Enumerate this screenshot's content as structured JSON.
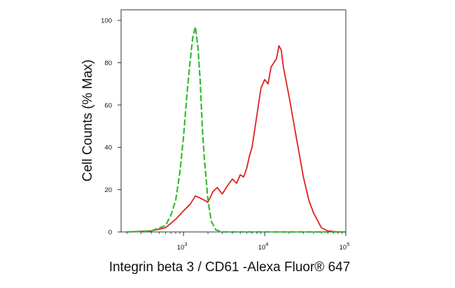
{
  "chart_data": {
    "type": "line",
    "xlabel": "Integrin beta 3 / CD61 -Alexa Fluor® 647",
    "ylabel": "Cell Counts (% Max)",
    "x_scale": "log",
    "xlim": [
      170,
      100000
    ],
    "ylim": [
      0,
      105
    ],
    "x_ticks": [
      {
        "value": 1000,
        "base": "10",
        "exp": "3"
      },
      {
        "value": 10000,
        "base": "10",
        "exp": "4"
      },
      {
        "value": 100000,
        "base": "10",
        "exp": "5"
      }
    ],
    "y_ticks": [
      0,
      20,
      40,
      60,
      80,
      100
    ],
    "y_tick_labels": [
      "0",
      "20",
      "40",
      "60",
      "80",
      "100"
    ],
    "grid": false,
    "series": [
      {
        "color": "#e02020",
        "style": "solid",
        "x": [
          200,
          400,
          600,
          800,
          1000,
          1200,
          1400,
          1600,
          1800,
          2000,
          2300,
          2600,
          3000,
          3500,
          4000,
          4500,
          5000,
          5500,
          6000,
          6500,
          7000,
          8000,
          9000,
          10000,
          11000,
          12000,
          13000,
          14000,
          15000,
          16000,
          17000,
          18000,
          20000,
          22000,
          25000,
          30000,
          35000,
          40000,
          50000,
          60000,
          80000,
          100000
        ],
        "y": [
          0,
          0.5,
          2,
          6,
          10,
          13,
          17,
          16,
          15,
          14,
          19,
          21,
          18,
          22,
          25,
          23,
          27,
          26,
          30,
          36,
          40,
          55,
          68,
          72,
          70,
          78,
          80,
          82,
          88,
          86,
          78,
          73,
          64,
          55,
          43,
          26,
          15,
          9,
          2,
          0.5,
          0,
          0
        ]
      },
      {
        "color": "#33bb33",
        "style": "dashed",
        "x": [
          200,
          400,
          600,
          700,
          800,
          900,
          1000,
          1100,
          1200,
          1300,
          1400,
          1500,
          1600,
          1700,
          1800,
          2000,
          2200,
          2500,
          3000,
          100000
        ],
        "y": [
          0,
          0.5,
          3,
          8,
          15,
          28,
          45,
          65,
          80,
          92,
          97,
          88,
          72,
          50,
          35,
          15,
          5,
          1,
          0,
          0
        ]
      }
    ]
  }
}
